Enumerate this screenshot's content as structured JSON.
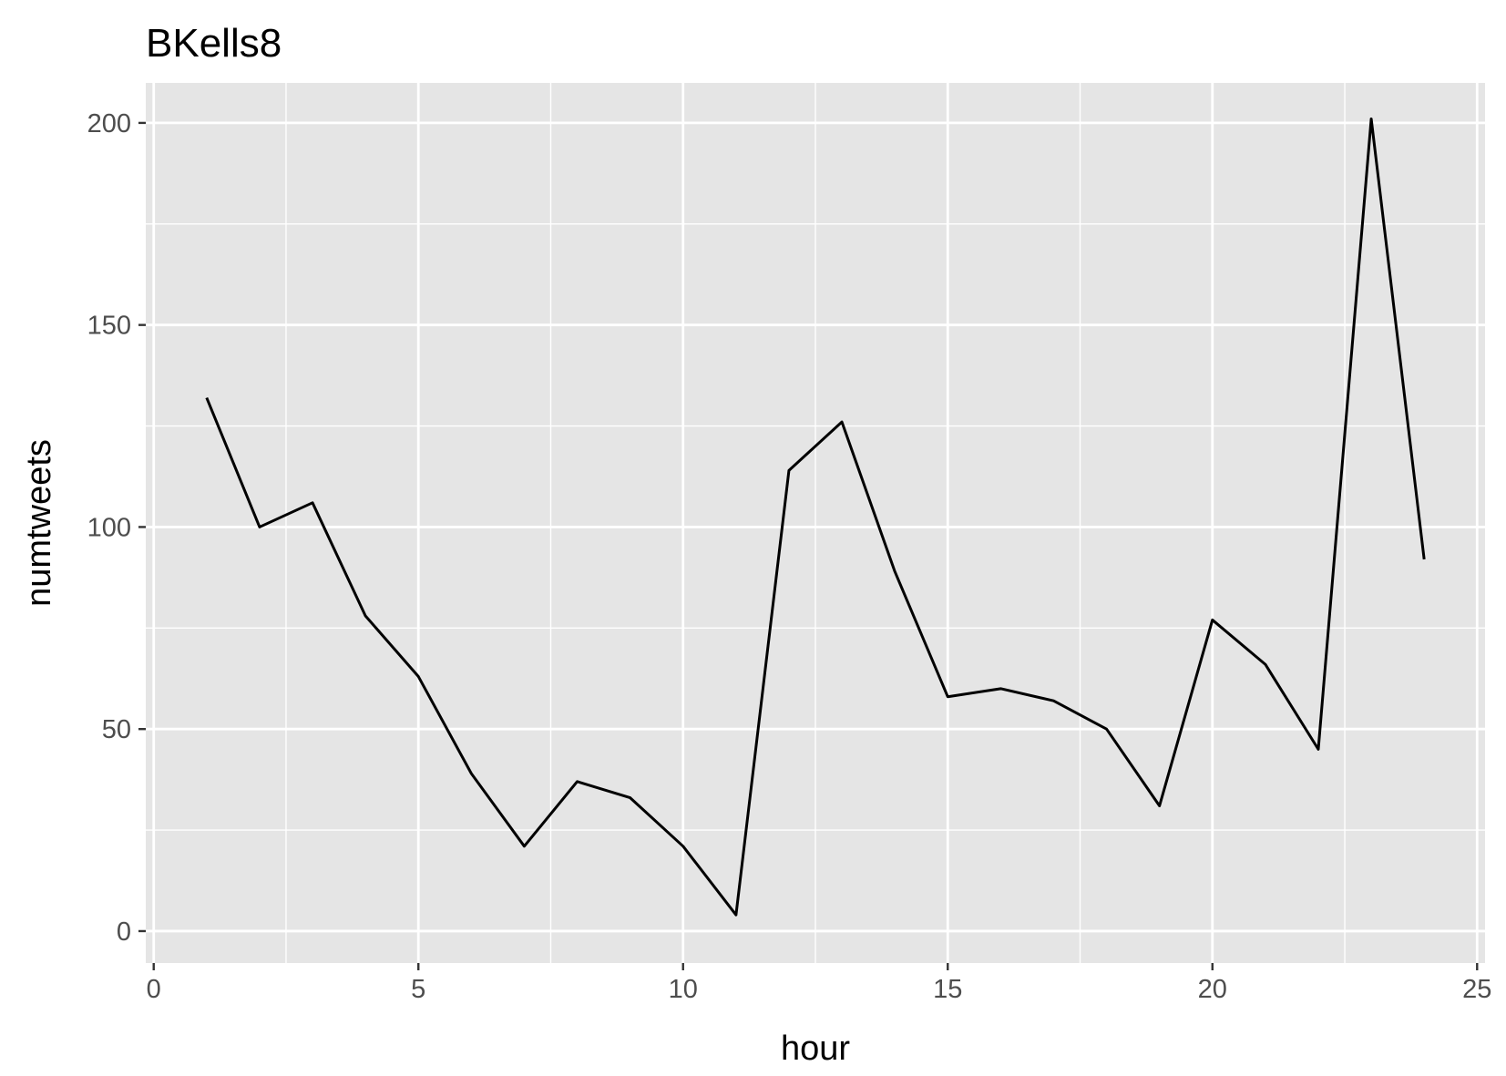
{
  "chart_data": {
    "type": "line",
    "title": "BKells8",
    "xlabel": "hour",
    "ylabel": "numtweets",
    "xlim": [
      -0.15,
      25.15
    ],
    "ylim": [
      -7.9,
      209.9
    ],
    "x_ticks": [
      0,
      5,
      10,
      15,
      20,
      25
    ],
    "y_ticks": [
      0,
      50,
      100,
      150,
      200
    ],
    "grid": true,
    "legend": "none",
    "series": [
      {
        "x": [
          1,
          2,
          3,
          4,
          5,
          6,
          7,
          8,
          9,
          10,
          11,
          12,
          13,
          14,
          15,
          16,
          17,
          18,
          19,
          20,
          21,
          22,
          23,
          24
        ],
        "y": [
          132,
          100,
          106,
          78,
          63,
          39,
          21,
          37,
          33,
          21,
          4,
          114,
          126,
          89,
          58,
          60,
          57,
          50,
          31,
          77,
          66,
          45,
          201,
          92
        ]
      }
    ],
    "colors": {
      "panel_background": "#e5e5e5",
      "grid_line": "#ffffff",
      "series_line": "#000000",
      "tick_label": "#4d4d4d",
      "tick_mark": "#333333"
    }
  }
}
